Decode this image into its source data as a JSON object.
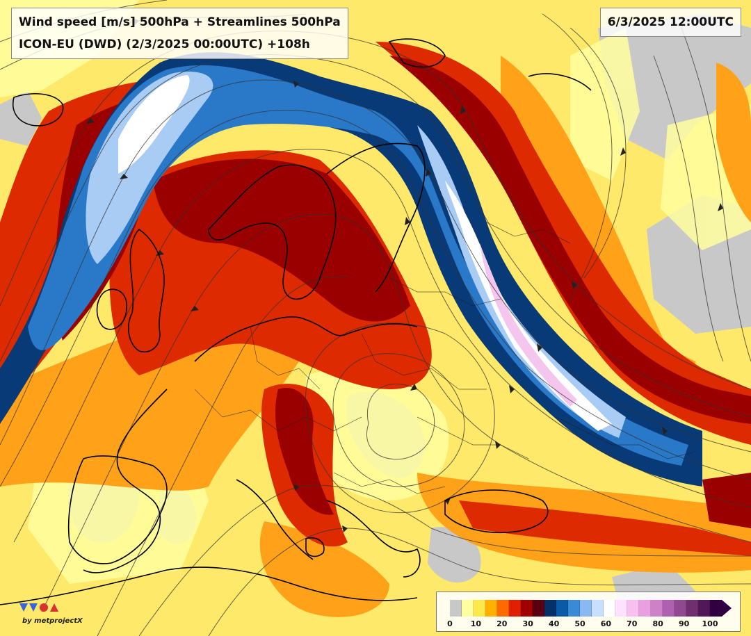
{
  "title": {
    "line1": "Wind speed [m/s] 500hPa + Streamlines 500hPa",
    "line2": "ICON-EU (DWD) (2/3/2025 00:00UTC) +108h"
  },
  "valid_time": "6/3/2025 12:00UTC",
  "logo": {
    "brand_text": "by metprojectX",
    "icon": "metprojectx-logo-icon"
  },
  "legend": {
    "unit": "m/s",
    "ticks": [
      "0",
      "10",
      "20",
      "30",
      "40",
      "50",
      "60",
      "70",
      "80",
      "90",
      "100"
    ],
    "colors": [
      "#c8c8c8",
      "#ffffa0",
      "#ffe84a",
      "#ffb000",
      "#ff6a00",
      "#e02000",
      "#a00000",
      "#5a0010",
      "#06306a",
      "#0a5aa8",
      "#3a8ad8",
      "#8ab8f0",
      "#c8e0ff",
      "#ffffff",
      "#ffe0ff",
      "#f8c0f0",
      "#e8a0e0",
      "#d080c8",
      "#b060b0",
      "#904890",
      "#703070",
      "#501858",
      "#300040"
    ]
  },
  "map": {
    "field": "wind speed 500hPa",
    "colors": {
      "background": "#ffe96a",
      "calm": "#c8c8c8",
      "light": "#ffffa0",
      "orange": "#ffa21a",
      "red": "#dd2a00",
      "darkred": "#9a0000",
      "navy": "#083a78",
      "blue": "#2a78c8",
      "lightblue": "#a8ccf4",
      "white": "#ffffff",
      "pink": "#f4c6ee",
      "streamline": "#333333",
      "coast": "#000000"
    }
  }
}
